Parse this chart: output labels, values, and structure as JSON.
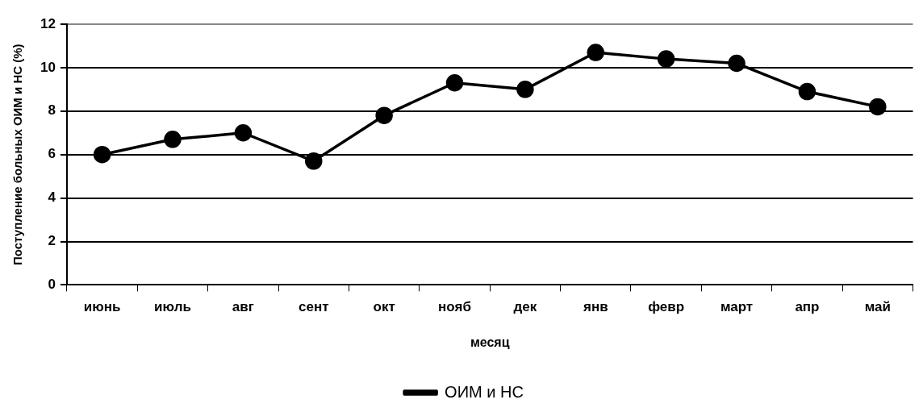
{
  "chart_data": {
    "type": "line",
    "xlabel": "месяц",
    "ylabel": "Поступление больных ОИМ и НС (%)",
    "categories": [
      "июнь",
      "июль",
      "авг",
      "сент",
      "окт",
      "нояб",
      "дек",
      "янв",
      "февр",
      "март",
      "апр",
      "май"
    ],
    "series": [
      {
        "name": "ОИМ и НС",
        "color": "#000000",
        "values": [
          6.0,
          6.7,
          7.0,
          5.7,
          7.8,
          9.3,
          9.0,
          10.7,
          10.4,
          10.2,
          8.9,
          8.2
        ]
      }
    ],
    "ylim": [
      0,
      12
    ],
    "yticks": [
      0,
      2,
      4,
      6,
      8,
      10,
      12
    ],
    "grid": "y",
    "legend": "bottom",
    "marker": "circle",
    "line_style": "solid"
  }
}
